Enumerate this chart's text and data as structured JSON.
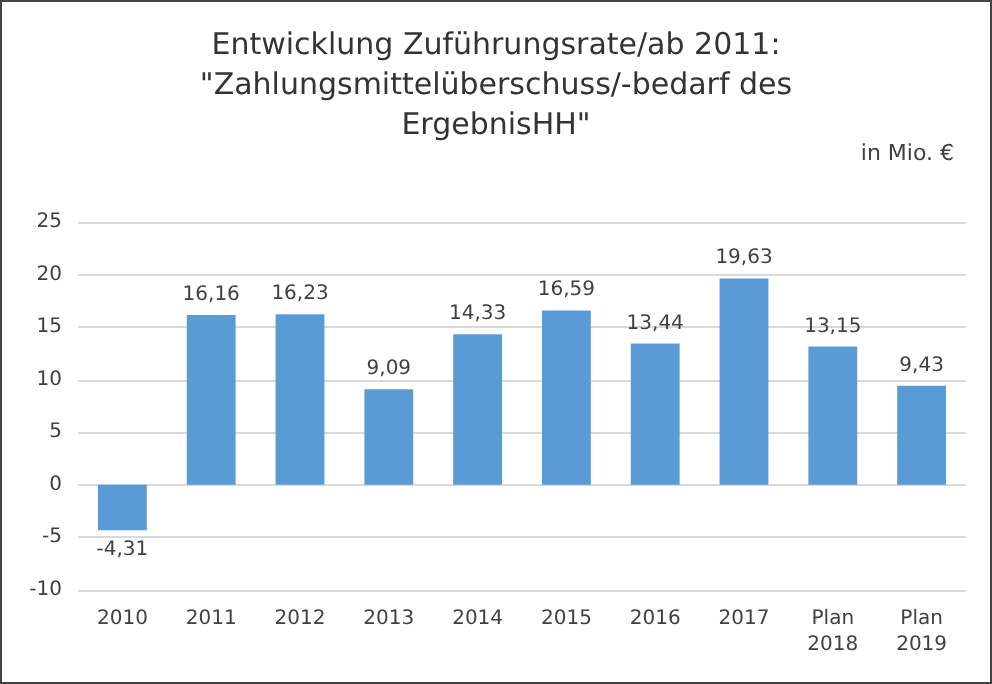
{
  "chart_data": {
    "type": "bar",
    "title": "Entwicklung Zuführungsrate/ab 2011:\n\"Zahlungsmittelüberschuss/-bedarf des\nErgebnisHH\"",
    "annotations": [
      "in Mio. €"
    ],
    "categories": [
      "2010",
      "2011",
      "2012",
      "2013",
      "2014",
      "2015",
      "2016",
      "2017",
      "Plan\n2018",
      "Plan\n2019"
    ],
    "values": [
      -4.31,
      16.16,
      16.23,
      9.09,
      14.33,
      16.59,
      13.44,
      19.63,
      13.15,
      9.43
    ],
    "value_labels": [
      "-4,31",
      "16,16",
      "16,23",
      "9,09",
      "14,33",
      "16,59",
      "13,44",
      "19,63",
      "13,15",
      "9,43"
    ],
    "color": "#5b9bd5",
    "ylim": [
      -10,
      25
    ],
    "yticks": [
      -10,
      -5,
      0,
      5,
      10,
      15,
      20,
      25
    ],
    "grid": "y"
  }
}
